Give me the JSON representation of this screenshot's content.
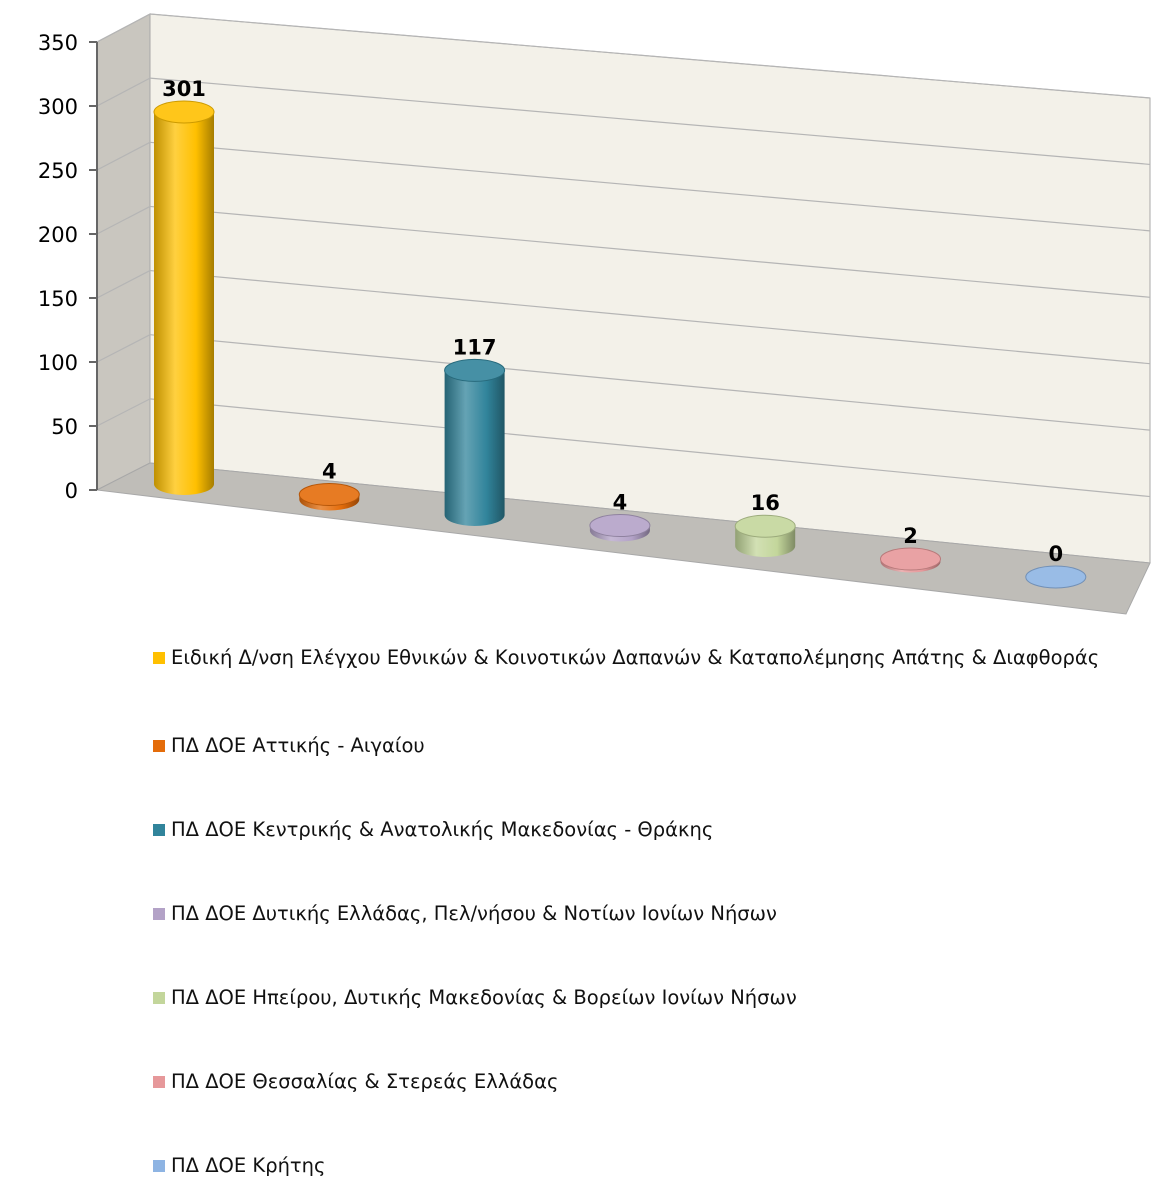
{
  "chart_data": {
    "type": "bar",
    "style": "3d-cylinder",
    "title": "",
    "xlabel": "",
    "ylabel": "",
    "ylim": [
      0,
      350
    ],
    "yticks": [
      0,
      50,
      100,
      150,
      200,
      250,
      300,
      350
    ],
    "grid": true,
    "legend_position": "bottom",
    "categories": [
      "Ειδική Δ/νση Ελέγχου Εθνικών & Κοινοτικών Δαπανών & Καταπολέμησης Απάτης & Διαφθοράς",
      "ΠΔ ΔΟΕ Αττικής - Αιγαίου",
      "ΠΔ ΔΟΕ Κεντρικής & Ανατολικής Μακεδονίας - Θράκης",
      "ΠΔ ΔΟΕ Δυτικής Ελλάδας, Πελ/νήσου & Νοτίων Ιονίων Νήσων",
      "ΠΔ ΔΟΕ Ηπείρου, Δυτικής Μακεδονίας & Βορείων Ιονίων Νήσων",
      "ΠΔ ΔΟΕ Θεσσαλίας & Στερεάς Ελλάδας",
      "ΠΔ ΔΟΕ Κρήτης"
    ],
    "values": [
      301,
      4,
      117,
      4,
      16,
      2,
      0
    ],
    "data_labels": [
      "301",
      "4",
      "117",
      "4",
      "16",
      "2",
      "0"
    ],
    "colors": [
      "#FFC000",
      "#E46C0A",
      "#31849B",
      "#B3A2C7",
      "#C3D69B",
      "#E6989A",
      "#8EB4E3"
    ]
  }
}
